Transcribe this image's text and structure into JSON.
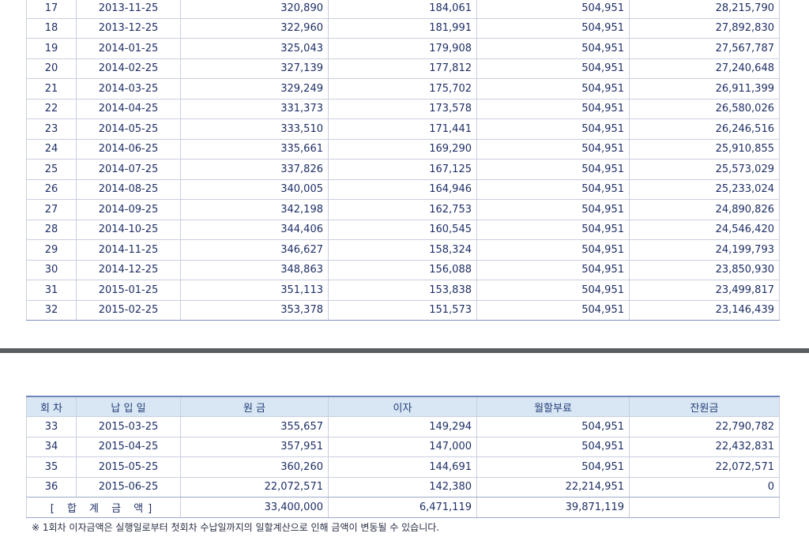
{
  "top_table": {
    "rows": [
      [
        "17",
        "2013-11-25",
        "320,890",
        "184,061",
        "504,951",
        "28,215,790"
      ],
      [
        "18",
        "2013-12-25",
        "322,960",
        "181,991",
        "504,951",
        "27,892,830"
      ],
      [
        "19",
        "2014-01-25",
        "325,043",
        "179,908",
        "504,951",
        "27,567,787"
      ],
      [
        "20",
        "2014-02-25",
        "327,139",
        "177,812",
        "504,951",
        "27,240,648"
      ],
      [
        "21",
        "2014-03-25",
        "329,249",
        "175,702",
        "504,951",
        "26,911,399"
      ],
      [
        "22",
        "2014-04-25",
        "331,373",
        "173,578",
        "504,951",
        "26,580,026"
      ],
      [
        "23",
        "2014-05-25",
        "333,510",
        "171,441",
        "504,951",
        "26,246,516"
      ],
      [
        "24",
        "2014-06-25",
        "335,661",
        "169,290",
        "504,951",
        "25,910,855"
      ],
      [
        "25",
        "2014-07-25",
        "337,826",
        "167,125",
        "504,951",
        "25,573,029"
      ],
      [
        "26",
        "2014-08-25",
        "340,005",
        "164,946",
        "504,951",
        "25,233,024"
      ],
      [
        "27",
        "2014-09-25",
        "342,198",
        "162,753",
        "504,951",
        "24,890,826"
      ],
      [
        "28",
        "2014-10-25",
        "344,406",
        "160,545",
        "504,951",
        "24,546,420"
      ],
      [
        "29",
        "2014-11-25",
        "346,627",
        "158,324",
        "504,951",
        "24,199,793"
      ],
      [
        "30",
        "2014-12-25",
        "348,863",
        "156,088",
        "504,951",
        "23,850,930"
      ],
      [
        "31",
        "2015-01-25",
        "351,113",
        "153,838",
        "504,951",
        "23,499,817"
      ],
      [
        "32",
        "2015-02-25",
        "353,378",
        "151,573",
        "504,951",
        "23,146,439"
      ]
    ]
  },
  "bottom_table": {
    "headers": [
      "회 차",
      "납 입 일",
      "원 금",
      "이자",
      "월할부료",
      "잔원금"
    ],
    "rows": [
      [
        "33",
        "2015-03-25",
        "355,657",
        "149,294",
        "504,951",
        "22,790,782"
      ],
      [
        "34",
        "2015-04-25",
        "357,951",
        "147,000",
        "504,951",
        "22,432,831"
      ],
      [
        "35",
        "2015-05-25",
        "360,260",
        "144,691",
        "504,951",
        "22,072,571"
      ],
      [
        "36",
        "2015-06-25",
        "22,072,571",
        "142,380",
        "22,214,951",
        "0"
      ]
    ],
    "total": {
      "label": "[ 합 계 금 액]",
      "principal": "33,400,000",
      "interest": "6,471,119",
      "installment": "39,871,119",
      "balance": ""
    }
  },
  "note": "※ 1회차 이자금액은 실행일로부터 첫회차 수납일까지의 일할계산으로 인해 금액이 변동될 수 있습니다."
}
